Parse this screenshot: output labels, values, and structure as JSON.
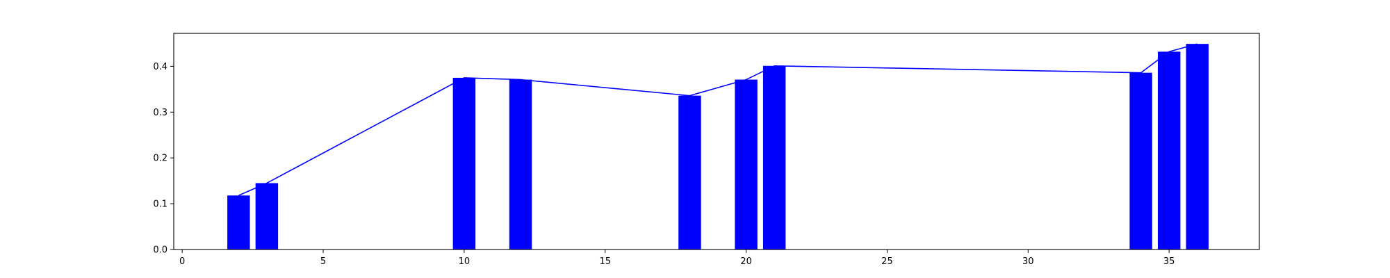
{
  "chart_data": {
    "type": "bar",
    "title": "",
    "xlabel": "",
    "ylabel": "",
    "x": [
      2,
      3,
      10,
      12,
      18,
      20,
      21,
      34,
      35,
      36
    ],
    "values": [
      0.118,
      0.145,
      0.375,
      0.371,
      0.336,
      0.371,
      0.401,
      0.386,
      0.432,
      0.449
    ],
    "bar_width": 0.8,
    "overlay_line": true,
    "xlim": [
      -0.3,
      38.2
    ],
    "ylim": [
      0,
      0.472
    ],
    "xticks": [
      0,
      5,
      10,
      15,
      20,
      25,
      30,
      35
    ],
    "yticks": [
      0.0,
      0.1,
      0.2,
      0.3,
      0.4
    ],
    "xtick_labels": [
      "0",
      "5",
      "10",
      "15",
      "20",
      "25",
      "30",
      "35"
    ],
    "ytick_labels": [
      "0.0",
      "0.1",
      "0.2",
      "0.3",
      "0.4"
    ],
    "grid": false,
    "legend": "none",
    "colors": {
      "bar": "#0000ff",
      "line": "#0000ff",
      "axes": "#000000"
    }
  }
}
